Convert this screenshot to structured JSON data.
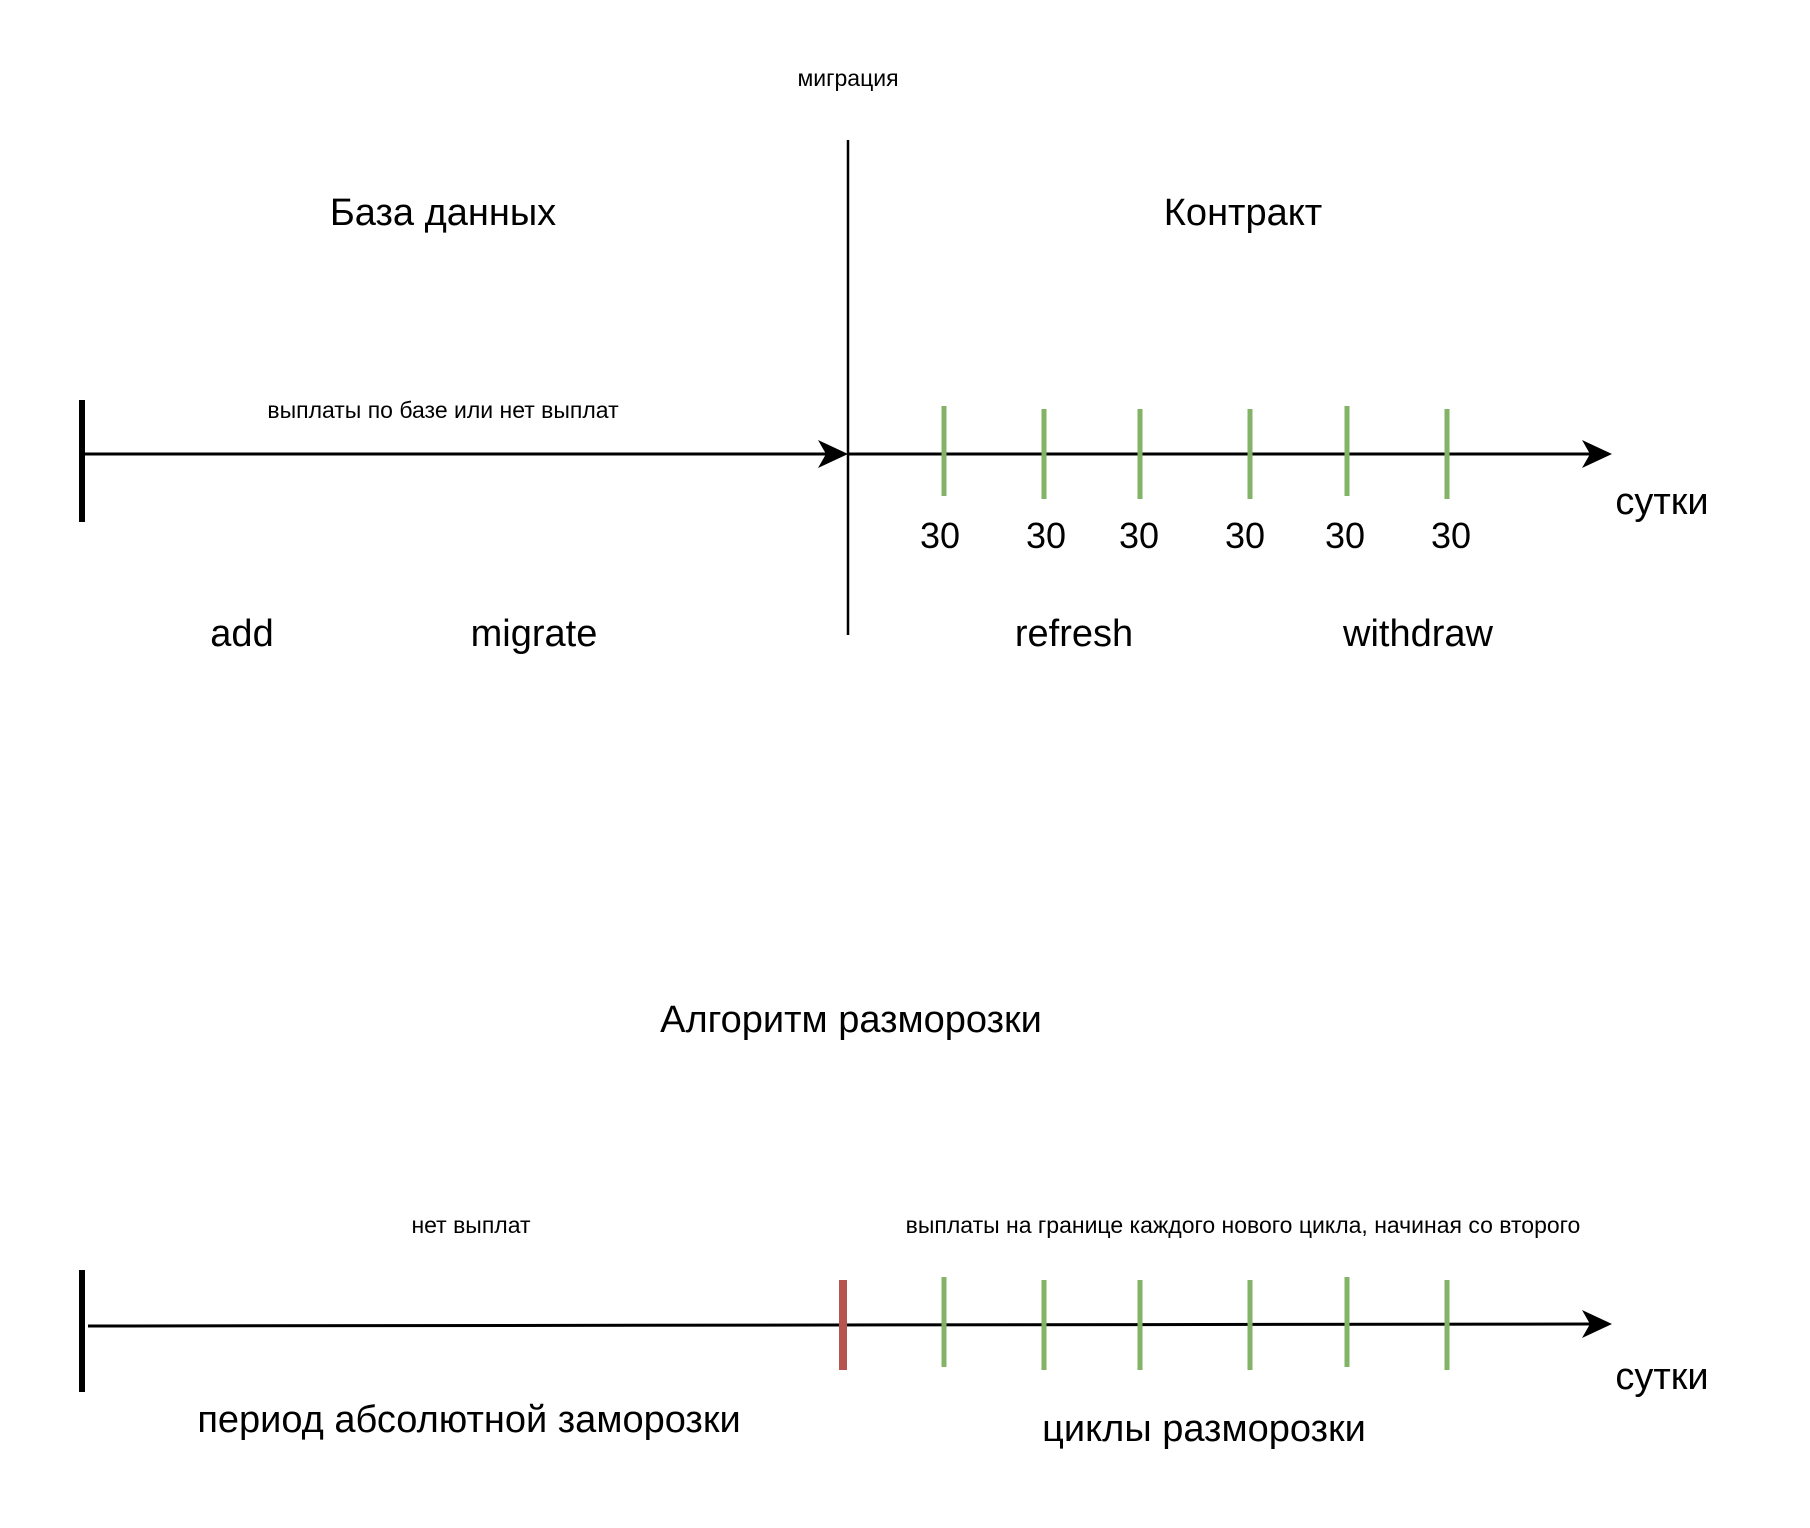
{
  "top": {
    "migration_label": "миграция",
    "database_label": "База данных",
    "contract_label": "Контракт",
    "db_payments_label": "выплаты по базе или нет выплат",
    "axis_label": "сутки",
    "cycle_days": [
      "30",
      "30",
      "30",
      "30",
      "30",
      "30"
    ],
    "methods": {
      "add": "add",
      "migrate": "migrate",
      "refresh": "refresh",
      "withdraw": "withdraw"
    }
  },
  "bottom": {
    "title": "Алгоритм разморозки",
    "no_payments_label": "нет выплат",
    "cycle_payments_label": "выплаты на границе каждого нового цикла, начиная со второго",
    "axis_label": "сутки",
    "freeze_period_label": "период абсолютной заморозки",
    "unfreeze_cycles_label": "циклы разморозки",
    "tick_count": 6
  },
  "colors": {
    "line": "#000000",
    "cycle_tick": "#82b366",
    "freeze_end_tick": "#b85450"
  }
}
